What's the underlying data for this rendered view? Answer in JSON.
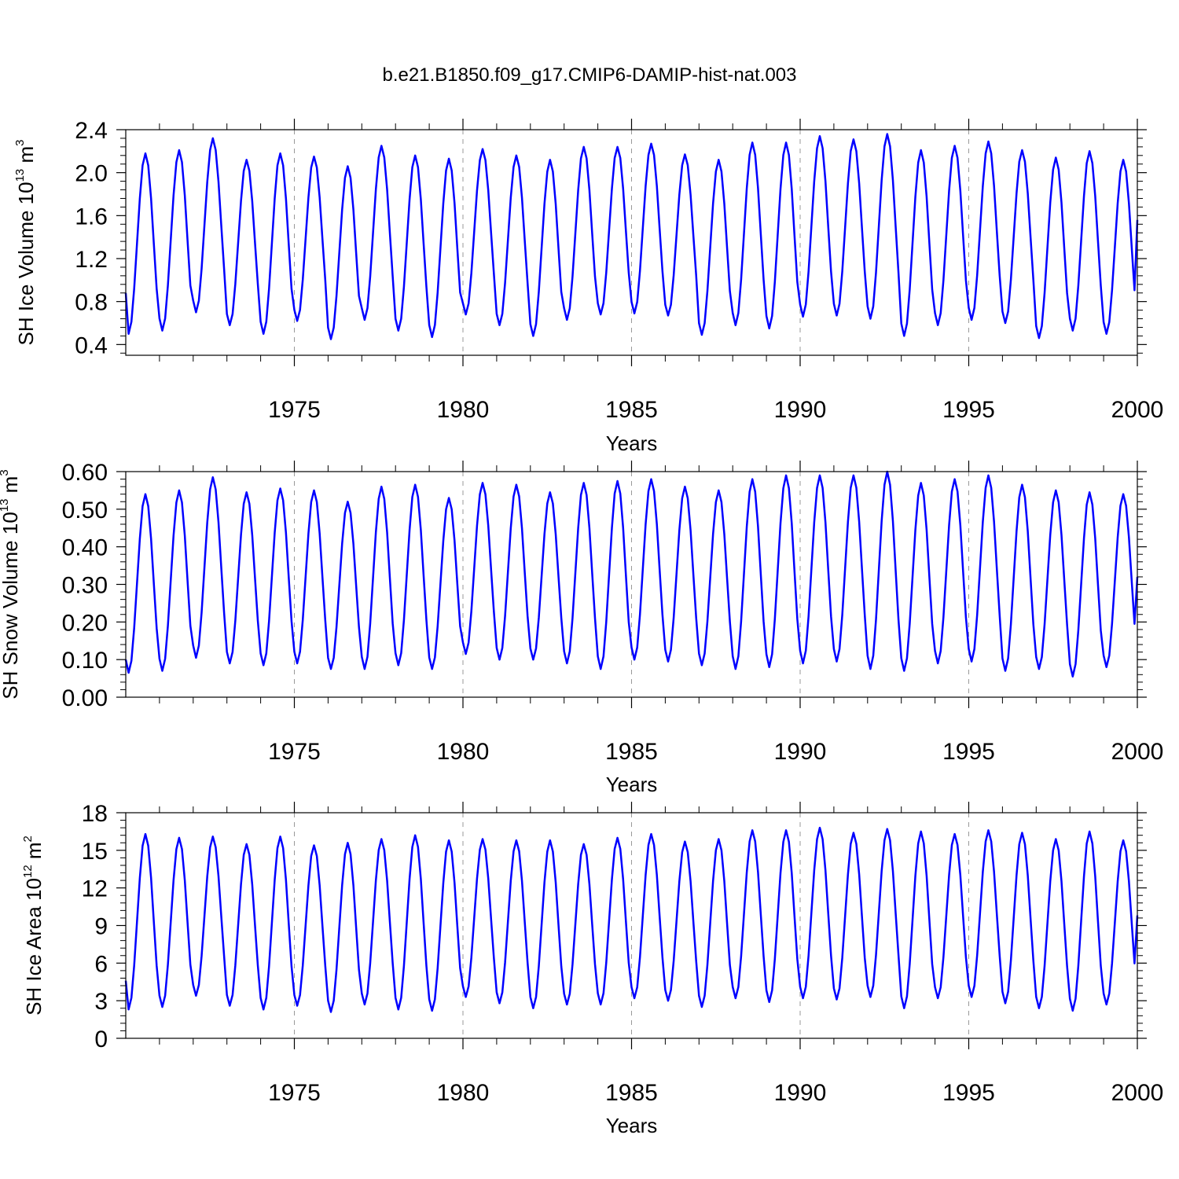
{
  "figure_title": "b.e21.B1850.f09_g17.CMIP6-DAMIP-hist-nat.003",
  "colors": {
    "series": "#0000ff",
    "frame": "#000000",
    "gridline": "#999999"
  },
  "chart_data": [
    {
      "type": "line",
      "title": "b.e21.B1850.f09_g17.CMIP6-DAMIP-hist-nat.003",
      "xlabel": "Years",
      "ylabel": {
        "prefix": "SH Ice Volume 10",
        "exp": "13",
        "unit": " m",
        "unit_exp": "3"
      },
      "xlim": [
        1970.0,
        2000.0
      ],
      "ylim": [
        0.3,
        2.4
      ],
      "xticks": [
        1975,
        1980,
        1985,
        1990,
        1995,
        2000
      ],
      "xtick_labels": [
        "1975",
        "1980",
        "1985",
        "1990",
        "1995",
        "2000"
      ],
      "yticks": [
        0.4,
        0.8,
        1.2,
        1.6,
        2.0,
        2.4
      ],
      "ytick_labels": [
        "0.4",
        "0.8",
        "1.2",
        "1.6",
        "2.0",
        "2.4"
      ],
      "grid": "dashed vertical lines at 5-year ticks",
      "start_year": 1970.0,
      "samples_per_year": 12,
      "start_value": 0.88,
      "end_value": 1.56,
      "series": [
        {
          "name": "SH Ice Volume",
          "annual_min": [
            0.5,
            0.53,
            0.7,
            0.58,
            0.5,
            0.62,
            0.45,
            0.63,
            0.53,
            0.47,
            0.68,
            0.58,
            0.48,
            0.63,
            0.68,
            0.69,
            0.67,
            0.49,
            0.58,
            0.55,
            0.66,
            0.67,
            0.64,
            0.48,
            0.58,
            0.63,
            0.6,
            0.46,
            0.53,
            0.5
          ],
          "annual_max": [
            2.18,
            2.21,
            2.32,
            2.12,
            2.18,
            2.15,
            2.06,
            2.25,
            2.16,
            2.13,
            2.22,
            2.16,
            2.12,
            2.24,
            2.24,
            2.27,
            2.17,
            2.12,
            2.28,
            2.28,
            2.34,
            2.31,
            2.36,
            2.21,
            2.25,
            2.29,
            2.21,
            2.14,
            2.2,
            2.12
          ]
        }
      ]
    },
    {
      "type": "line",
      "xlabel": "Years",
      "ylabel": {
        "prefix": "SH Snow Volume 10",
        "exp": "13",
        "unit": " m",
        "unit_exp": "3"
      },
      "xlim": [
        1970.0,
        2000.0
      ],
      "ylim": [
        0.0,
        0.6
      ],
      "xticks": [
        1975,
        1980,
        1985,
        1990,
        1995,
        2000
      ],
      "xtick_labels": [
        "1975",
        "1980",
        "1985",
        "1990",
        "1995",
        "2000"
      ],
      "yticks": [
        0.0,
        0.1,
        0.2,
        0.3,
        0.4,
        0.5,
        0.6
      ],
      "ytick_labels": [
        "0.00",
        "0.10",
        "0.20",
        "0.30",
        "0.40",
        "0.50",
        "0.60"
      ],
      "grid": "dashed vertical lines at 5-year ticks",
      "start_year": 1970.0,
      "samples_per_year": 12,
      "start_value": 0.1,
      "end_value": 0.32,
      "series": [
        {
          "name": "SH Snow Volume",
          "annual_min": [
            0.065,
            0.07,
            0.105,
            0.09,
            0.085,
            0.09,
            0.075,
            0.075,
            0.085,
            0.075,
            0.115,
            0.1,
            0.1,
            0.09,
            0.075,
            0.1,
            0.095,
            0.085,
            0.075,
            0.08,
            0.09,
            0.095,
            0.075,
            0.07,
            0.09,
            0.095,
            0.07,
            0.075,
            0.055,
            0.08
          ],
          "annual_max": [
            0.54,
            0.55,
            0.585,
            0.545,
            0.555,
            0.55,
            0.52,
            0.56,
            0.565,
            0.53,
            0.57,
            0.565,
            0.545,
            0.57,
            0.575,
            0.58,
            0.56,
            0.55,
            0.58,
            0.59,
            0.59,
            0.59,
            0.6,
            0.57,
            0.58,
            0.59,
            0.565,
            0.55,
            0.545,
            0.54
          ]
        }
      ]
    },
    {
      "type": "line",
      "xlabel": "Years",
      "ylabel": {
        "prefix": "SH Ice Area 10",
        "exp": "12",
        "unit": " m",
        "unit_exp": "2"
      },
      "xlim": [
        1970.0,
        2000.0
      ],
      "ylim": [
        0,
        18
      ],
      "xticks": [
        1975,
        1980,
        1985,
        1990,
        1995,
        2000
      ],
      "xtick_labels": [
        "1975",
        "1980",
        "1985",
        "1990",
        "1995",
        "2000"
      ],
      "yticks": [
        0,
        3,
        6,
        9,
        12,
        15,
        18
      ],
      "ytick_labels": [
        "0",
        "3",
        "6",
        "9",
        "12",
        "15",
        "18"
      ],
      "grid": "dashed vertical lines at 5-year ticks",
      "start_year": 1970.0,
      "samples_per_year": 12,
      "start_value": 4.6,
      "end_value": 9.8,
      "series": [
        {
          "name": "SH Ice Area",
          "annual_min": [
            2.3,
            2.5,
            3.4,
            2.6,
            2.3,
            2.6,
            2.1,
            2.7,
            2.3,
            2.2,
            3.3,
            2.8,
            2.4,
            2.7,
            2.7,
            3.2,
            3.0,
            2.5,
            3.2,
            2.9,
            3.2,
            3.1,
            3.3,
            2.4,
            3.2,
            3.3,
            2.8,
            2.4,
            2.2,
            2.7
          ],
          "annual_max": [
            16.3,
            16.0,
            16.1,
            15.5,
            16.1,
            15.4,
            15.6,
            15.9,
            16.2,
            15.8,
            15.9,
            15.8,
            15.8,
            15.5,
            16.0,
            16.3,
            15.7,
            15.9,
            16.6,
            16.6,
            16.8,
            16.4,
            16.7,
            16.5,
            16.3,
            16.6,
            16.4,
            15.9,
            16.5,
            15.8
          ]
        }
      ]
    }
  ]
}
